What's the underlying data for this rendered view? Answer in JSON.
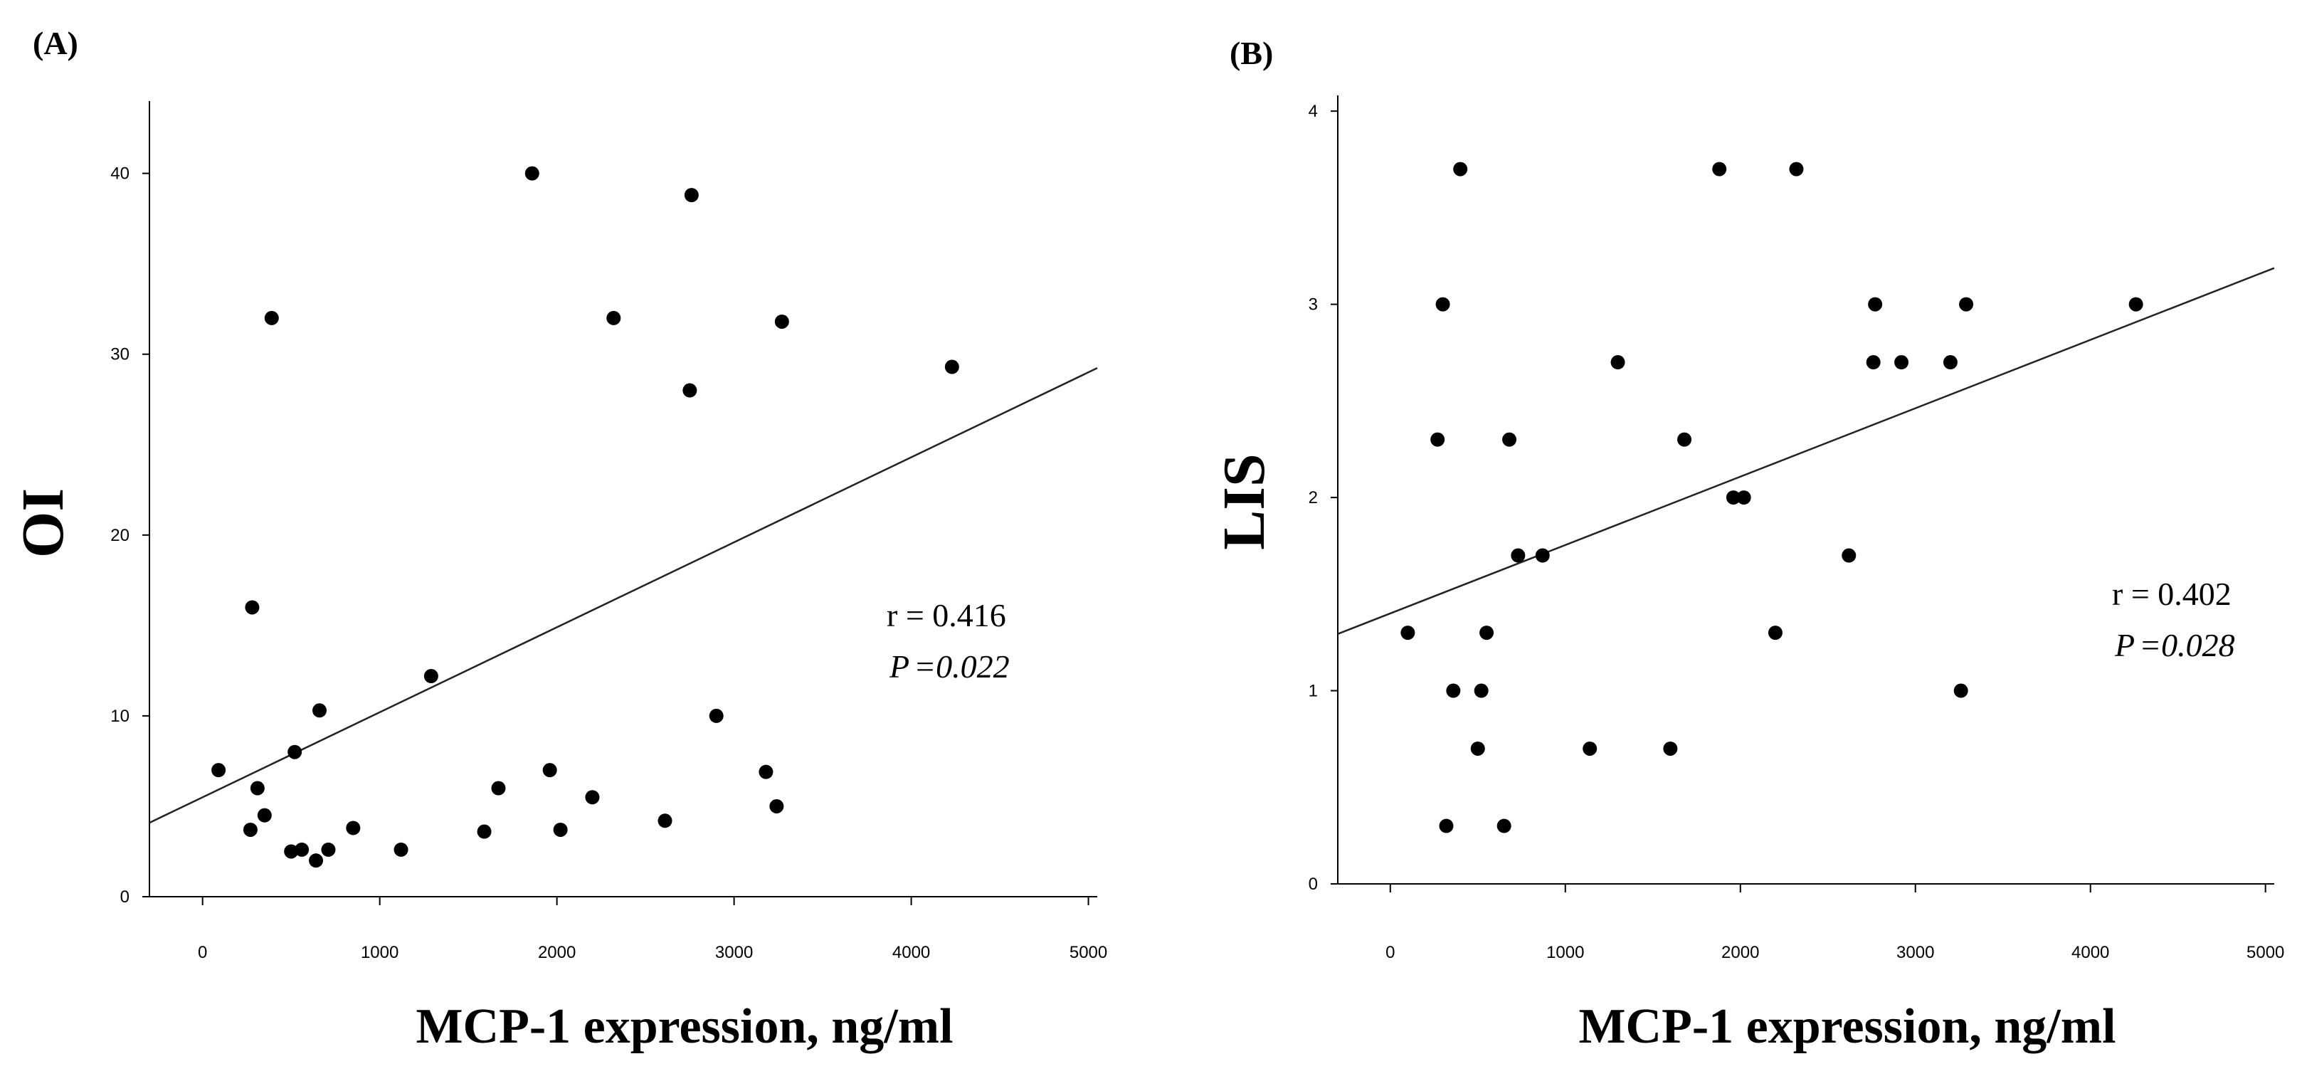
{
  "chart_data": [
    {
      "type": "scatter",
      "panel_label": "(A)",
      "title": "",
      "xlabel": "MCP-1 expression, ng/ml",
      "ylabel": "OI",
      "xlim": [
        -300,
        5050
      ],
      "ylim": [
        0,
        44
      ],
      "x_ticks": [
        0,
        1000,
        2000,
        3000,
        4000,
        5000
      ],
      "x_tick_labels": [
        "0",
        "1000",
        "2000",
        "3000",
        "4000",
        "5000"
      ],
      "y_ticks": [
        0,
        10,
        20,
        30,
        40
      ],
      "y_tick_labels": [
        "0",
        "10",
        "20",
        "30",
        "40"
      ],
      "grid": false,
      "regression": {
        "slope": 0.0047,
        "intercept": 5.5
      },
      "annotation": {
        "r_text": "r = 0.416",
        "p_label": "P",
        "p_value_text": "=0.022"
      },
      "points": [
        {
          "x": 90,
          "y": 7.0
        },
        {
          "x": 270,
          "y": 3.7
        },
        {
          "x": 280,
          "y": 16.0
        },
        {
          "x": 310,
          "y": 6.0
        },
        {
          "x": 350,
          "y": 4.5
        },
        {
          "x": 390,
          "y": 32.0
        },
        {
          "x": 500,
          "y": 2.5
        },
        {
          "x": 520,
          "y": 8.0
        },
        {
          "x": 560,
          "y": 2.6
        },
        {
          "x": 640,
          "y": 2.0
        },
        {
          "x": 660,
          "y": 10.3
        },
        {
          "x": 710,
          "y": 2.6
        },
        {
          "x": 850,
          "y": 3.8
        },
        {
          "x": 1120,
          "y": 2.6
        },
        {
          "x": 1290,
          "y": 12.2
        },
        {
          "x": 1590,
          "y": 3.6
        },
        {
          "x": 1670,
          "y": 6.0
        },
        {
          "x": 1860,
          "y": 40.0
        },
        {
          "x": 1960,
          "y": 7.0
        },
        {
          "x": 2020,
          "y": 3.7
        },
        {
          "x": 2200,
          "y": 5.5
        },
        {
          "x": 2320,
          "y": 32.0
        },
        {
          "x": 2610,
          "y": 4.2
        },
        {
          "x": 2750,
          "y": 28.0
        },
        {
          "x": 2760,
          "y": 38.8
        },
        {
          "x": 2900,
          "y": 10.0
        },
        {
          "x": 3180,
          "y": 6.9
        },
        {
          "x": 3240,
          "y": 5.0
        },
        {
          "x": 3270,
          "y": 31.8
        },
        {
          "x": 4230,
          "y": 29.3
        }
      ]
    },
    {
      "type": "scatter",
      "panel_label": "(B)",
      "title": "",
      "xlabel": "MCP-1 expression, ng/ml",
      "ylabel": "LIS",
      "xlim": [
        -300,
        5050
      ],
      "ylim": [
        0,
        4.1
      ],
      "x_ticks": [
        0,
        1000,
        2000,
        3000,
        4000,
        5000
      ],
      "x_tick_labels": [
        "0",
        "1000",
        "2000",
        "3000",
        "4000",
        "5000"
      ],
      "y_ticks": [
        0,
        1,
        2,
        3,
        4
      ],
      "y_tick_labels": [
        "0",
        "1",
        "2",
        "3",
        "4"
      ],
      "grid": false,
      "regression": {
        "slope": 0.000354,
        "intercept": 1.4
      },
      "annotation": {
        "r_text": "r = 0.402",
        "p_label": "P",
        "p_value_text": "=0.028"
      },
      "points": [
        {
          "x": 100,
          "y": 1.3
        },
        {
          "x": 270,
          "y": 2.3
        },
        {
          "x": 300,
          "y": 3.0
        },
        {
          "x": 320,
          "y": 0.3
        },
        {
          "x": 360,
          "y": 1.0
        },
        {
          "x": 400,
          "y": 3.7
        },
        {
          "x": 500,
          "y": 0.7
        },
        {
          "x": 520,
          "y": 1.0
        },
        {
          "x": 550,
          "y": 1.3
        },
        {
          "x": 650,
          "y": 0.3
        },
        {
          "x": 680,
          "y": 2.3
        },
        {
          "x": 730,
          "y": 1.7
        },
        {
          "x": 870,
          "y": 1.7
        },
        {
          "x": 1140,
          "y": 0.7
        },
        {
          "x": 1300,
          "y": 2.7
        },
        {
          "x": 1600,
          "y": 0.7
        },
        {
          "x": 1680,
          "y": 2.3
        },
        {
          "x": 1880,
          "y": 3.7
        },
        {
          "x": 1960,
          "y": 2.0
        },
        {
          "x": 2020,
          "y": 2.0
        },
        {
          "x": 2200,
          "y": 1.3
        },
        {
          "x": 2320,
          "y": 3.7
        },
        {
          "x": 2620,
          "y": 1.7
        },
        {
          "x": 2760,
          "y": 2.7
        },
        {
          "x": 2770,
          "y": 3.0
        },
        {
          "x": 2920,
          "y": 2.7
        },
        {
          "x": 3200,
          "y": 2.7
        },
        {
          "x": 3260,
          "y": 1.0
        },
        {
          "x": 3290,
          "y": 3.0
        },
        {
          "x": 4260,
          "y": 3.0
        }
      ]
    }
  ]
}
